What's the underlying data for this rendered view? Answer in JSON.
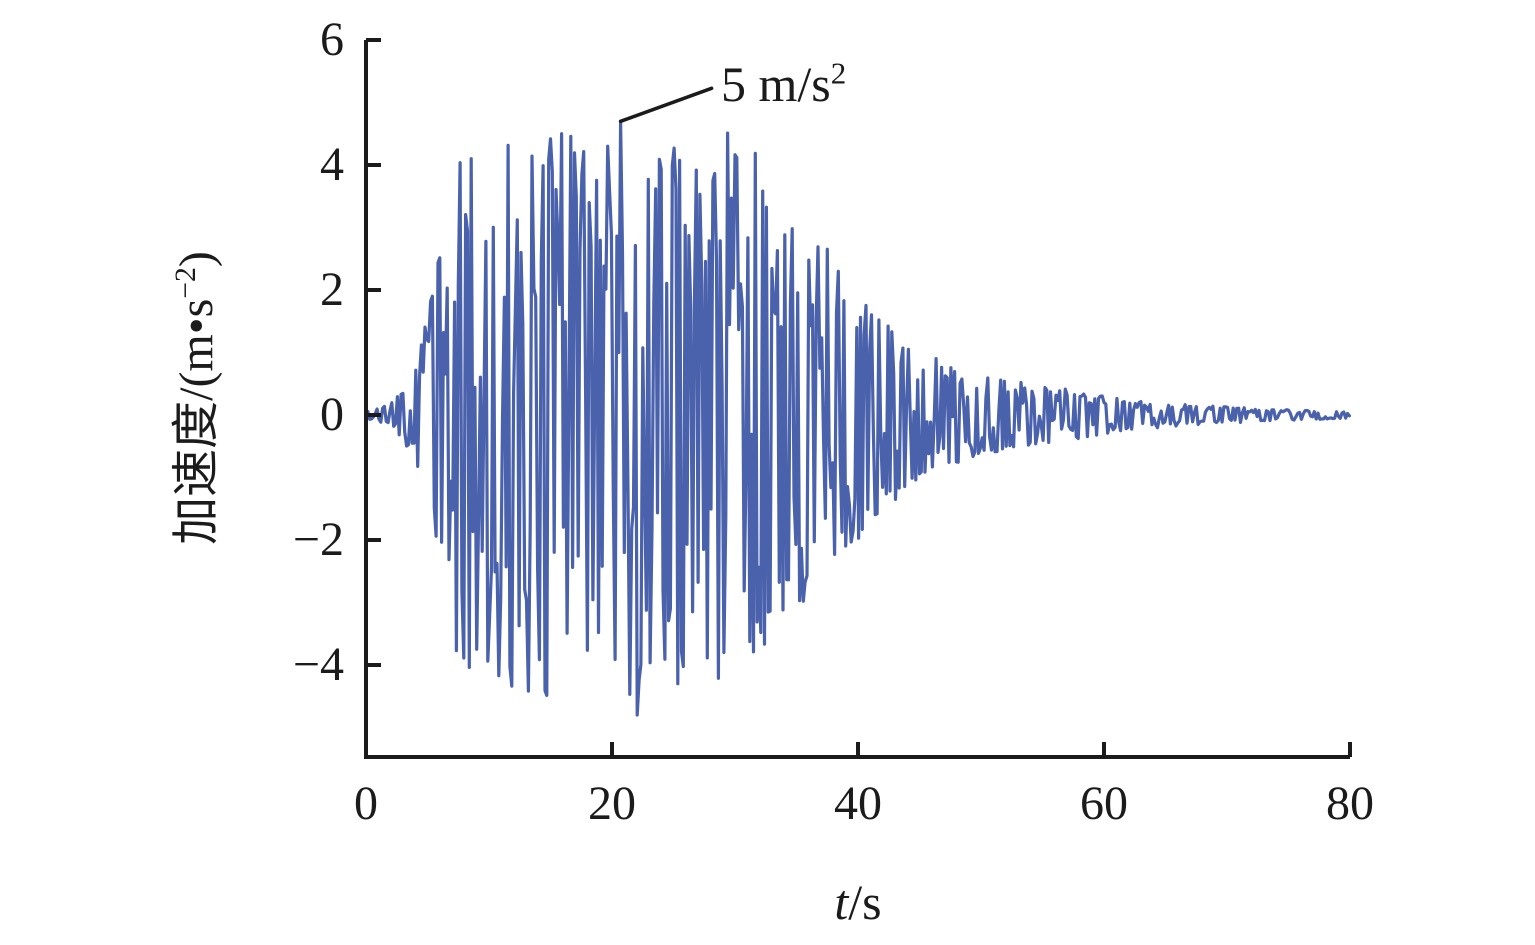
{
  "chart_data": {
    "type": "line",
    "series_name": "acceleration-time-history",
    "line_color": "#4a61ac",
    "axis_color": "#1b1b1b",
    "background_color": "#ffffff",
    "xlabel_main": "t",
    "xlabel_unit": "/s",
    "ylabel_prefix": "加速度/(m•s",
    "ylabel_sup": "−2",
    "ylabel_suffix": ")",
    "x_tick_labels": [
      "0",
      "20",
      "40",
      "60",
      "80"
    ],
    "x_tick_values": [
      0,
      20,
      40,
      60,
      80
    ],
    "y_tick_labels": [
      "6",
      "4",
      "2",
      "0",
      "−2",
      "−4"
    ],
    "y_tick_values": [
      6,
      4,
      2,
      0,
      -2,
      -4
    ],
    "x_range": [
      0,
      80
    ],
    "y_axis_top_value": 6.0,
    "y_axis_bottom_value": -5.47,
    "grid": "off",
    "legend": "none",
    "peak_annotation": {
      "label": "5 m/s",
      "label_sup": "2",
      "t": 20.7,
      "value": 4.7
    },
    "sample_interval_s": 0.15,
    "forced_points": [
      [
        20.55,
        1.0
      ],
      [
        20.7,
        4.7
      ],
      [
        20.85,
        2.6
      ],
      [
        21.0,
        -2.2
      ],
      [
        22.05,
        -4.8
      ]
    ],
    "envelope_m_s2": [
      [
        0,
        0.06
      ],
      [
        1,
        0.1
      ],
      [
        2,
        0.18
      ],
      [
        3,
        0.4
      ],
      [
        4,
        0.85
      ],
      [
        5,
        1.6
      ],
      [
        6,
        2.6
      ],
      [
        7,
        3.6
      ],
      [
        8,
        4.35
      ],
      [
        9,
        4.5
      ],
      [
        10,
        4.3
      ],
      [
        12,
        4.45
      ],
      [
        14,
        4.5
      ],
      [
        16,
        4.55
      ],
      [
        18,
        4.3
      ],
      [
        20,
        4.5
      ],
      [
        21,
        4.7
      ],
      [
        22,
        4.65
      ],
      [
        24,
        4.4
      ],
      [
        26,
        4.5
      ],
      [
        28,
        4.45
      ],
      [
        30,
        4.55
      ],
      [
        31,
        4.4
      ],
      [
        32,
        4.1
      ],
      [
        33,
        3.5
      ],
      [
        34,
        3.1
      ],
      [
        35,
        3.25
      ],
      [
        36,
        2.8
      ],
      [
        37,
        2.95
      ],
      [
        38,
        2.5
      ],
      [
        39,
        2.2
      ],
      [
        40,
        2.0
      ],
      [
        41,
        1.8
      ],
      [
        42,
        1.6
      ],
      [
        43,
        1.4
      ],
      [
        44,
        1.25
      ],
      [
        45,
        1.1
      ],
      [
        46,
        0.95
      ],
      [
        47,
        0.88
      ],
      [
        48,
        0.78
      ],
      [
        49,
        0.7
      ],
      [
        50,
        0.63
      ],
      [
        52,
        0.56
      ],
      [
        54,
        0.5
      ],
      [
        56,
        0.46
      ],
      [
        58,
        0.38
      ],
      [
        60,
        0.3
      ],
      [
        62,
        0.25
      ],
      [
        64,
        0.21
      ],
      [
        66,
        0.18
      ],
      [
        68,
        0.15
      ],
      [
        70,
        0.13
      ],
      [
        72,
        0.11
      ],
      [
        74,
        0.09
      ],
      [
        76,
        0.08
      ],
      [
        78,
        0.065
      ],
      [
        80,
        0.05
      ]
    ]
  }
}
